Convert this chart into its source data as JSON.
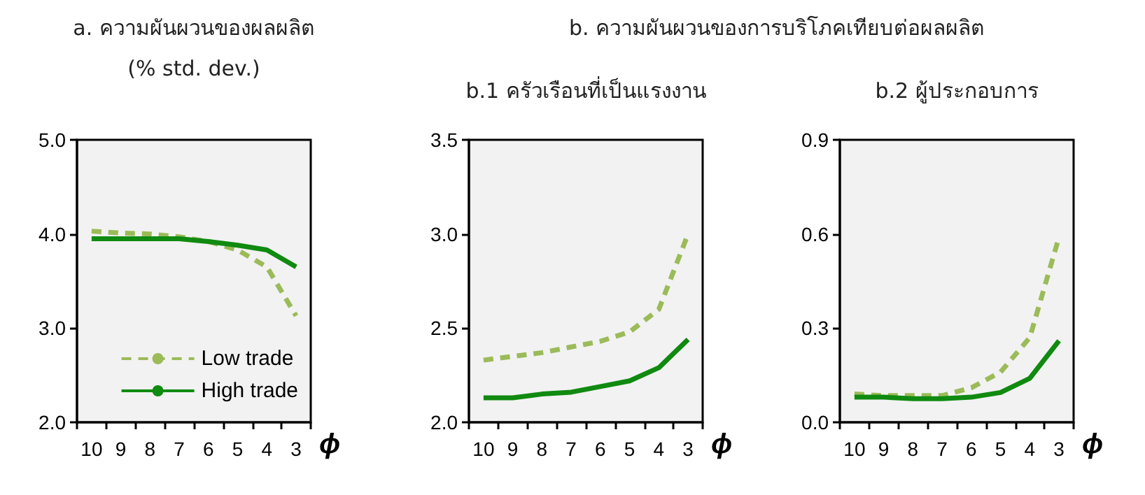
{
  "chart_data": [
    {
      "type": "line",
      "title": "a. ความผันผวนของผลผลิต",
      "subtitle": "(% std. dev.)",
      "xlabel": "ϕ",
      "categories": [
        "10",
        "9",
        "8",
        "7",
        "6",
        "5",
        "4",
        "3"
      ],
      "series": [
        {
          "name": "Low trade",
          "color": "#9bbb59",
          "line_style": "dashed",
          "values": [
            4.03,
            4.01,
            4.0,
            3.97,
            3.92,
            3.83,
            3.65,
            3.13
          ]
        },
        {
          "name": "High trade",
          "color": "#108a10",
          "line_style": "solid",
          "values": [
            3.95,
            3.95,
            3.95,
            3.95,
            3.92,
            3.88,
            3.83,
            3.65
          ]
        }
      ],
      "ylim": [
        2.0,
        5.0
      ],
      "yticks": [
        {
          "value": 2,
          "label": "2.0"
        },
        {
          "value": 3,
          "label": "3.0"
        },
        {
          "value": 4,
          "label": "4.0"
        },
        {
          "value": 5,
          "label": "5.0"
        }
      ],
      "grid": false,
      "legend": "bottom right",
      "marker": "none"
    },
    {
      "type": "line",
      "title": "b. ความผันผวนของการบริโภคเทียบต่อผลผลิต",
      "subtitle": "b.1 ครัวเรือนที่เป็นแรงงาน",
      "xlabel": "ϕ",
      "categories": [
        "10",
        "9",
        "8",
        "7",
        "6",
        "5",
        "4",
        "3"
      ],
      "series": [
        {
          "color": "#9bbb59",
          "line_style": "dashed",
          "values": [
            2.33,
            2.35,
            2.37,
            2.4,
            2.43,
            2.48,
            2.6,
            3.0
          ]
        },
        {
          "color": "#108a10",
          "line_style": "solid",
          "values": [
            2.13,
            2.13,
            2.15,
            2.16,
            2.19,
            2.22,
            2.29,
            2.44
          ]
        }
      ],
      "ylim": [
        2.0,
        3.5
      ],
      "yticks": [
        {
          "value": 2,
          "label": "2.0"
        },
        {
          "value": 2.5,
          "label": "2.5"
        },
        {
          "value": 3,
          "label": "3.0"
        },
        {
          "value": 3.5,
          "label": "3.5"
        }
      ],
      "grid": false,
      "legend": false,
      "marker": "none"
    },
    {
      "type": "line",
      "title": "b.2 ผู้ประกอบการ",
      "xlabel": "ϕ",
      "categories": [
        "10",
        "9",
        "8",
        "7",
        "6",
        "5",
        "4",
        "3"
      ],
      "series": [
        {
          "color": "#9bbb59",
          "line_style": "dashed",
          "values": [
            0.09,
            0.085,
            0.085,
            0.085,
            0.11,
            0.16,
            0.27,
            0.59
          ]
        },
        {
          "color": "#108a10",
          "line_style": "solid",
          "values": [
            0.08,
            0.08,
            0.075,
            0.075,
            0.08,
            0.095,
            0.14,
            0.26
          ]
        }
      ],
      "ylim": [
        0.0,
        0.9
      ],
      "yticks": [
        {
          "value": 0,
          "label": "0.0"
        },
        {
          "value": 0.3,
          "label": "0.3"
        },
        {
          "value": 0.6,
          "label": "0.6"
        },
        {
          "value": 0.9,
          "label": "0.9"
        }
      ],
      "grid": false,
      "legend": false,
      "marker": "none"
    }
  ]
}
